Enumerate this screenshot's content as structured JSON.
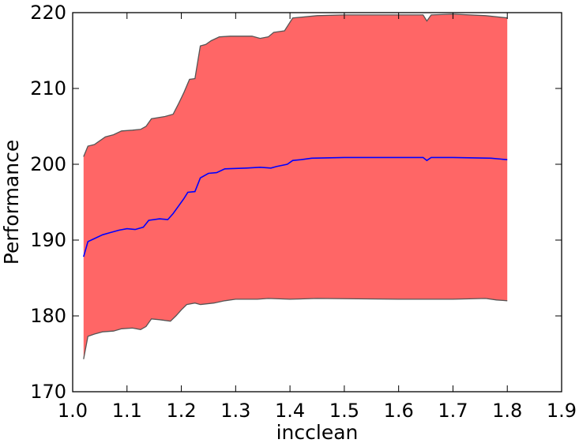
{
  "chart_data": {
    "type": "area",
    "title": "",
    "xlabel": "incclean",
    "ylabel": "Performance",
    "xlim": [
      1.0,
      1.9
    ],
    "ylim": [
      170,
      220
    ],
    "xticks": [
      1.0,
      1.1,
      1.2,
      1.3,
      1.4,
      1.5,
      1.6,
      1.7,
      1.8,
      1.9
    ],
    "yticks": [
      170,
      180,
      190,
      200,
      210,
      220
    ],
    "xtick_labels": [
      "1.0",
      "1.1",
      "1.2",
      "1.3",
      "1.4",
      "1.5",
      "1.6",
      "1.7",
      "1.8",
      "1.9"
    ],
    "ytick_labels": [
      "170",
      "180",
      "190",
      "200",
      "210",
      "220"
    ],
    "grid": false,
    "legend": "none",
    "colors": {
      "band": "#ff6666",
      "band_edge": "#555555",
      "mean_line": "#0000ff"
    },
    "series": [
      {
        "role": "upper",
        "points": [
          [
            1.02,
            201.0
          ],
          [
            1.028,
            202.4
          ],
          [
            1.04,
            202.6
          ],
          [
            1.05,
            203.1
          ],
          [
            1.06,
            203.6
          ],
          [
            1.075,
            203.9
          ],
          [
            1.09,
            204.4
          ],
          [
            1.11,
            204.5
          ],
          [
            1.125,
            204.6
          ],
          [
            1.135,
            205.0
          ],
          [
            1.145,
            206.0
          ],
          [
            1.17,
            206.3
          ],
          [
            1.185,
            206.6
          ],
          [
            1.195,
            208.0
          ],
          [
            1.205,
            209.5
          ],
          [
            1.215,
            211.2
          ],
          [
            1.225,
            211.3
          ],
          [
            1.235,
            215.6
          ],
          [
            1.245,
            215.8
          ],
          [
            1.255,
            216.3
          ],
          [
            1.27,
            216.8
          ],
          [
            1.29,
            216.9
          ],
          [
            1.33,
            216.9
          ],
          [
            1.345,
            216.6
          ],
          [
            1.36,
            216.8
          ],
          [
            1.37,
            217.4
          ],
          [
            1.39,
            217.6
          ],
          [
            1.405,
            219.3
          ],
          [
            1.42,
            219.4
          ],
          [
            1.45,
            219.6
          ],
          [
            1.5,
            219.7
          ],
          [
            1.6,
            219.7
          ],
          [
            1.645,
            219.7
          ],
          [
            1.652,
            218.9
          ],
          [
            1.66,
            219.7
          ],
          [
            1.7,
            219.8
          ],
          [
            1.76,
            219.6
          ],
          [
            1.8,
            219.3
          ]
        ]
      },
      {
        "role": "mean",
        "points": [
          [
            1.02,
            187.8
          ],
          [
            1.028,
            189.8
          ],
          [
            1.04,
            190.2
          ],
          [
            1.055,
            190.7
          ],
          [
            1.07,
            191.0
          ],
          [
            1.085,
            191.3
          ],
          [
            1.1,
            191.5
          ],
          [
            1.115,
            191.4
          ],
          [
            1.13,
            191.7
          ],
          [
            1.14,
            192.6
          ],
          [
            1.16,
            192.8
          ],
          [
            1.175,
            192.7
          ],
          [
            1.185,
            193.5
          ],
          [
            1.195,
            194.5
          ],
          [
            1.205,
            195.5
          ],
          [
            1.212,
            196.3
          ],
          [
            1.225,
            196.4
          ],
          [
            1.235,
            198.2
          ],
          [
            1.25,
            198.8
          ],
          [
            1.265,
            198.9
          ],
          [
            1.28,
            199.4
          ],
          [
            1.32,
            199.5
          ],
          [
            1.345,
            199.6
          ],
          [
            1.365,
            199.5
          ],
          [
            1.375,
            199.7
          ],
          [
            1.395,
            200.0
          ],
          [
            1.405,
            200.5
          ],
          [
            1.42,
            200.6
          ],
          [
            1.44,
            200.8
          ],
          [
            1.5,
            200.9
          ],
          [
            1.6,
            200.9
          ],
          [
            1.645,
            200.9
          ],
          [
            1.652,
            200.5
          ],
          [
            1.66,
            200.9
          ],
          [
            1.7,
            200.9
          ],
          [
            1.77,
            200.8
          ],
          [
            1.8,
            200.6
          ]
        ]
      },
      {
        "role": "lower",
        "points": [
          [
            1.02,
            174.3
          ],
          [
            1.028,
            177.3
          ],
          [
            1.04,
            177.6
          ],
          [
            1.055,
            177.9
          ],
          [
            1.075,
            178.0
          ],
          [
            1.09,
            178.3
          ],
          [
            1.11,
            178.4
          ],
          [
            1.125,
            178.2
          ],
          [
            1.135,
            178.6
          ],
          [
            1.145,
            179.6
          ],
          [
            1.16,
            179.5
          ],
          [
            1.18,
            179.3
          ],
          [
            1.19,
            180.0
          ],
          [
            1.2,
            180.8
          ],
          [
            1.21,
            181.5
          ],
          [
            1.225,
            181.7
          ],
          [
            1.235,
            181.5
          ],
          [
            1.26,
            181.7
          ],
          [
            1.28,
            182.0
          ],
          [
            1.3,
            182.2
          ],
          [
            1.34,
            182.2
          ],
          [
            1.36,
            182.3
          ],
          [
            1.4,
            182.2
          ],
          [
            1.45,
            182.3
          ],
          [
            1.6,
            182.2
          ],
          [
            1.7,
            182.2
          ],
          [
            1.76,
            182.3
          ],
          [
            1.78,
            182.1
          ],
          [
            1.8,
            182.0
          ]
        ]
      }
    ]
  }
}
